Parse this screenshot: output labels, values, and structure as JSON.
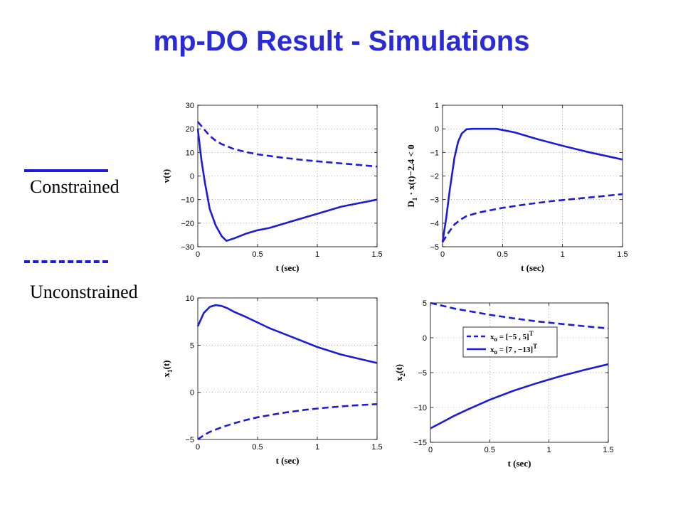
{
  "title": "mp-DO Result - Simulations",
  "legend": {
    "constrained_label": "Constrained",
    "unconstrained_label": "Unconstrained",
    "line_color": "#1c1cd8"
  },
  "chart_data": [
    {
      "type": "line",
      "ylabel": "v(t)",
      "xlabel": "t (sec)",
      "xlim": [
        0,
        1.5
      ],
      "ylim": [
        -30,
        30
      ],
      "xticks": [
        0,
        0.5,
        1,
        1.5
      ],
      "yticks": [
        -30,
        -20,
        -10,
        0,
        10,
        20,
        30
      ],
      "grid": "dotted",
      "series": [
        {
          "style": "solid",
          "x": [
            0,
            0.03,
            0.06,
            0.1,
            0.15,
            0.2,
            0.24,
            0.3,
            0.4,
            0.5,
            0.6,
            0.8,
            1.0,
            1.2,
            1.5
          ],
          "y": [
            20,
            7,
            -3,
            -14,
            -21,
            -25.5,
            -27.5,
            -26.5,
            -24.5,
            -23,
            -22,
            -19,
            -16,
            -13,
            -10
          ]
        },
        {
          "style": "dashed",
          "x": [
            0,
            0.05,
            0.1,
            0.15,
            0.2,
            0.3,
            0.4,
            0.5,
            0.7,
            0.9,
            1.1,
            1.3,
            1.5
          ],
          "y": [
            23,
            20,
            17,
            15,
            13.5,
            11.5,
            10.2,
            9.2,
            7.8,
            6.7,
            5.8,
            4.9,
            4
          ]
        }
      ]
    },
    {
      "type": "line",
      "ylabel": "D1 · x(t)−2.4 < 0",
      "xlabel": "t (sec)",
      "xlim": [
        0,
        1.5
      ],
      "ylim": [
        -5,
        1
      ],
      "xticks": [
        0,
        0.5,
        1,
        1.5
      ],
      "yticks": [
        -5,
        -4,
        -3,
        -2,
        -1,
        0,
        1
      ],
      "grid": "dotted",
      "series": [
        {
          "style": "solid",
          "x": [
            0,
            0.03,
            0.06,
            0.1,
            0.13,
            0.16,
            0.2,
            0.25,
            0.45,
            0.6,
            0.8,
            1.0,
            1.2,
            1.5
          ],
          "y": [
            -4.8,
            -3.8,
            -2.6,
            -1.2,
            -0.55,
            -0.2,
            -0.02,
            0,
            0,
            -0.15,
            -0.45,
            -0.72,
            -0.97,
            -1.3
          ]
        },
        {
          "style": "dashed",
          "x": [
            0,
            0.05,
            0.1,
            0.15,
            0.2,
            0.3,
            0.4,
            0.5,
            0.7,
            0.9,
            1.1,
            1.3,
            1.5
          ],
          "y": [
            -4.8,
            -4.4,
            -4.05,
            -3.85,
            -3.7,
            -3.55,
            -3.45,
            -3.35,
            -3.2,
            -3.07,
            -2.97,
            -2.87,
            -2.77
          ]
        }
      ]
    },
    {
      "type": "line",
      "ylabel": "x1(t)",
      "xlabel": "t (sec)",
      "xlim": [
        0,
        1.5
      ],
      "ylim": [
        -5,
        10
      ],
      "xticks": [
        0,
        0.5,
        1,
        1.5
      ],
      "yticks": [
        -5,
        0,
        5,
        10
      ],
      "grid": "dotted",
      "series": [
        {
          "style": "solid",
          "x": [
            0,
            0.05,
            0.1,
            0.15,
            0.2,
            0.25,
            0.3,
            0.4,
            0.5,
            0.6,
            0.8,
            1.0,
            1.2,
            1.5
          ],
          "y": [
            7,
            8.4,
            9.05,
            9.25,
            9.15,
            8.9,
            8.55,
            8,
            7.4,
            6.8,
            5.8,
            4.8,
            4.0,
            3.1
          ]
        },
        {
          "style": "dashed",
          "x": [
            0,
            0.05,
            0.1,
            0.2,
            0.3,
            0.4,
            0.5,
            0.7,
            0.9,
            1.1,
            1.3,
            1.5
          ],
          "y": [
            -5,
            -4.55,
            -4.2,
            -3.7,
            -3.3,
            -2.95,
            -2.65,
            -2.2,
            -1.85,
            -1.6,
            -1.4,
            -1.25
          ]
        }
      ]
    },
    {
      "type": "line",
      "ylabel": "x2(t)",
      "xlabel": "t (sec)",
      "xlim": [
        0,
        1.5
      ],
      "ylim": [
        -15,
        5
      ],
      "xticks": [
        0,
        0.5,
        1,
        1.5
      ],
      "yticks": [
        -15,
        -10,
        -5,
        0,
        5
      ],
      "grid": "dotted",
      "legend": {
        "placement": "top-left",
        "dashed_label": "xo = [−5 , 5]T",
        "solid_label": "xo = [7 , −13]T"
      },
      "series": [
        {
          "style": "dashed",
          "name": "xo = [−5 , 5]T",
          "x": [
            0,
            0.1,
            0.2,
            0.3,
            0.5,
            0.7,
            0.9,
            1.1,
            1.3,
            1.5
          ],
          "y": [
            5,
            4.6,
            4.2,
            3.9,
            3.3,
            2.8,
            2.35,
            2.0,
            1.65,
            1.35
          ]
        },
        {
          "style": "solid",
          "name": "xo = [7 , −13]T",
          "x": [
            0,
            0.1,
            0.2,
            0.3,
            0.5,
            0.7,
            0.9,
            1.1,
            1.3,
            1.5
          ],
          "y": [
            -13,
            -12.1,
            -11.2,
            -10.4,
            -8.9,
            -7.6,
            -6.5,
            -5.5,
            -4.6,
            -3.8
          ]
        }
      ]
    }
  ]
}
